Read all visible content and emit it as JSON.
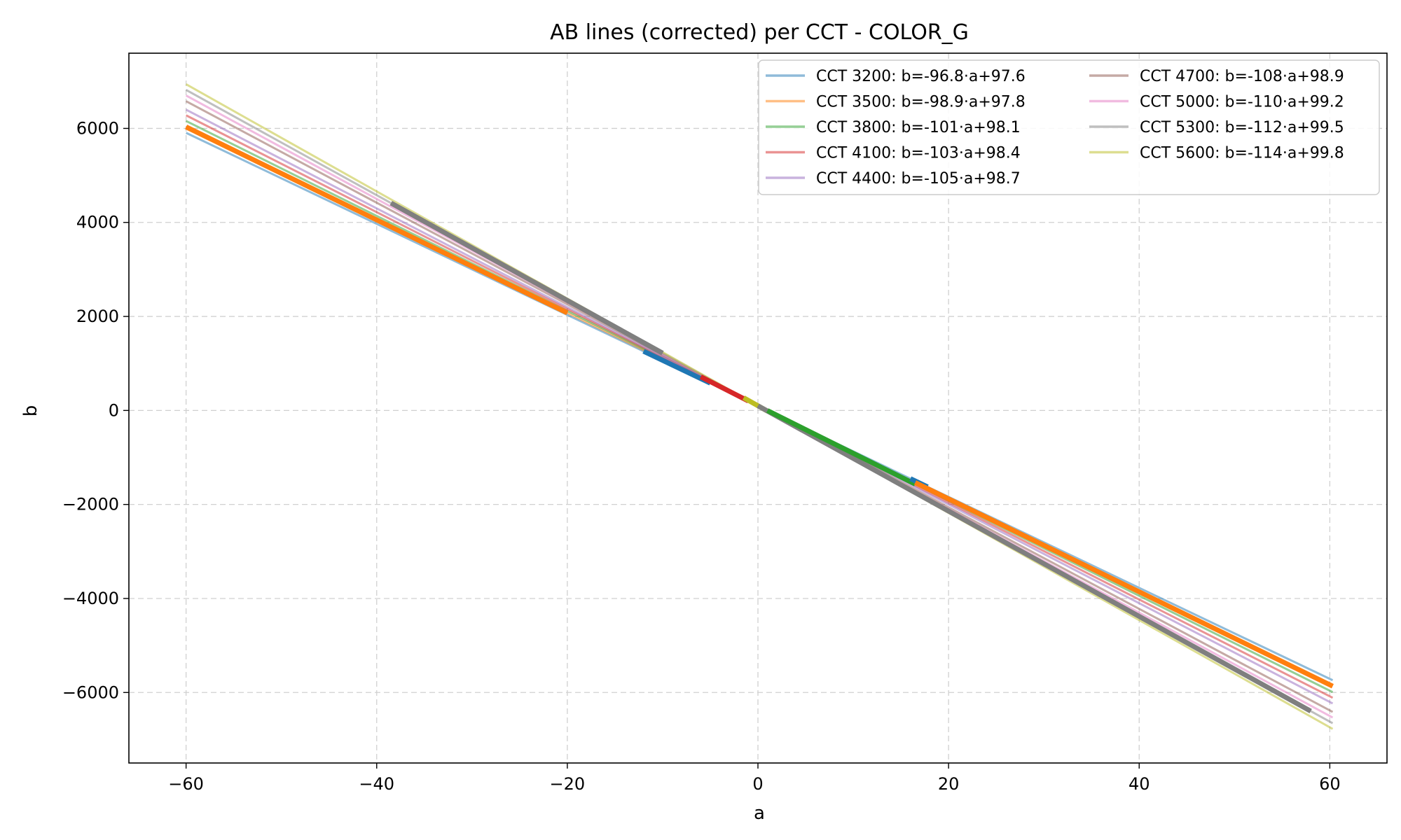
{
  "chart_data": {
    "type": "line",
    "title": "AB lines (corrected) per CCT - COLOR_G",
    "xlabel": "a",
    "ylabel": "b",
    "xlim": [
      -66,
      66
    ],
    "ylim": [
      -7500,
      7600
    ],
    "xticks": [
      -60,
      -40,
      -20,
      0,
      20,
      40,
      60
    ],
    "xtick_labels": [
      "−60",
      "−40",
      "−20",
      "0",
      "20",
      "40",
      "60"
    ],
    "yticks": [
      -6000,
      -4000,
      -2000,
      0,
      2000,
      4000,
      6000
    ],
    "ytick_labels": [
      "−6000",
      "−4000",
      "−2000",
      "0",
      "2000",
      "4000",
      "6000"
    ],
    "grid": true,
    "legend_position": "upper right",
    "legend_columns": 2,
    "series": [
      {
        "name": "CCT 3200: b=-96.8·a+97.6",
        "slope": -96.8,
        "intercept": 97.6,
        "x": [
          -60,
          60.3
        ],
        "color": "#1f77b4"
      },
      {
        "name": "CCT 3500: b=-98.9·a+97.8",
        "slope": -98.9,
        "intercept": 97.8,
        "x": [
          -60,
          60.3
        ],
        "color": "#ff7f0e"
      },
      {
        "name": "CCT 3800: b=-101·a+98.1",
        "slope": -101,
        "intercept": 98.1,
        "x": [
          -60,
          60.3
        ],
        "color": "#2ca02c"
      },
      {
        "name": "CCT 4100: b=-103·a+98.4",
        "slope": -103,
        "intercept": 98.4,
        "x": [
          -60,
          60.3
        ],
        "color": "#d62728"
      },
      {
        "name": "CCT 4400: b=-105·a+98.7",
        "slope": -105,
        "intercept": 98.7,
        "x": [
          -60,
          60.3
        ],
        "color": "#9467bd"
      },
      {
        "name": "CCT 4700: b=-108·a+98.9",
        "slope": -108,
        "intercept": 98.9,
        "x": [
          -60,
          60.3
        ],
        "color": "#8c564b"
      },
      {
        "name": "CCT 5000: b=-110·a+99.2",
        "slope": -110,
        "intercept": 99.2,
        "x": [
          -60,
          60.3
        ],
        "color": "#e377c2"
      },
      {
        "name": "CCT 5300: b=-112·a+99.5",
        "slope": -112,
        "intercept": 99.5,
        "x": [
          -60,
          60.3
        ],
        "color": "#7f7f7f"
      },
      {
        "name": "CCT 5600: b=-114·a+99.8",
        "slope": -114,
        "intercept": 99.8,
        "x": [
          -60,
          60.3
        ],
        "color": "#bcbd22"
      }
    ],
    "segments": [
      {
        "color": "#ff7f0e",
        "slope": -98.9,
        "intercept": 97.8,
        "x": [
          -60,
          -20
        ]
      },
      {
        "color": "#7f7f7f",
        "slope": -112,
        "intercept": 99.5,
        "x": [
          -38.5,
          -10
        ]
      },
      {
        "color": "#1f77b4",
        "slope": -96.8,
        "intercept": 97.6,
        "x": [
          -12,
          -5
        ]
      },
      {
        "color": "#d62728",
        "slope": -103,
        "intercept": 98.4,
        "x": [
          -6,
          -1
        ]
      },
      {
        "color": "#bcbd22",
        "slope": -114,
        "intercept": 99.8,
        "x": [
          -1.5,
          1
        ]
      },
      {
        "color": "#7f7f7f",
        "slope": -112,
        "intercept": 99.5,
        "x": [
          0,
          58
        ]
      },
      {
        "color": "#2ca02c",
        "slope": -101,
        "intercept": 98.1,
        "x": [
          1,
          16.5
        ]
      },
      {
        "color": "#1f77b4",
        "slope": -96.8,
        "intercept": 97.6,
        "x": [
          16,
          17.8
        ]
      },
      {
        "color": "#ff7f0e",
        "slope": -98.9,
        "intercept": 97.8,
        "x": [
          16.5,
          60.3
        ]
      }
    ]
  }
}
